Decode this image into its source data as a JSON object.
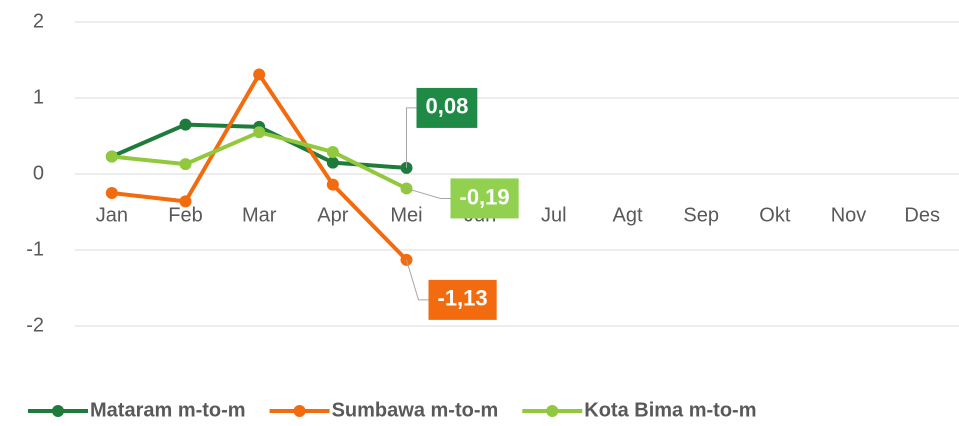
{
  "chart_data": {
    "type": "line",
    "categories": [
      "Jan",
      "Feb",
      "Mar",
      "Apr",
      "Mei",
      "Jun",
      "Jul",
      "Agt",
      "Sep",
      "Okt",
      "Nov",
      "Des"
    ],
    "series": [
      {
        "name": "Mataram m-to-m",
        "color": "#1e7b3c",
        "label_color": "#1e8a45",
        "values": [
          0.23,
          0.65,
          0.62,
          0.15,
          0.08,
          null,
          null,
          null,
          null,
          null,
          null,
          null
        ],
        "value_labels": [
          null,
          null,
          null,
          null,
          "0,08",
          null,
          null,
          null,
          null,
          null,
          null,
          null
        ]
      },
      {
        "name": "Sumbawa m-to-m",
        "color": "#f26b0f",
        "label_color": "#f26b0f",
        "values": [
          -0.25,
          -0.36,
          1.31,
          -0.14,
          -1.13,
          null,
          null,
          null,
          null,
          null,
          null,
          null
        ],
        "value_labels": [
          null,
          null,
          null,
          null,
          "-1,13",
          null,
          null,
          null,
          null,
          null,
          null,
          null
        ]
      },
      {
        "name": "Kota Bima m-to-m",
        "color": "#92c83e",
        "label_color": "#92d050",
        "values": [
          0.23,
          0.13,
          0.55,
          0.29,
          -0.19,
          null,
          null,
          null,
          null,
          null,
          null,
          null
        ],
        "value_labels": [
          null,
          null,
          null,
          null,
          "-0,19",
          null,
          null,
          null,
          null,
          null,
          null,
          null
        ]
      }
    ],
    "ylim": [
      -2,
      2
    ],
    "yticks": [
      -2,
      -1,
      0,
      1,
      2
    ],
    "grid": true,
    "legend": "bottom"
  }
}
